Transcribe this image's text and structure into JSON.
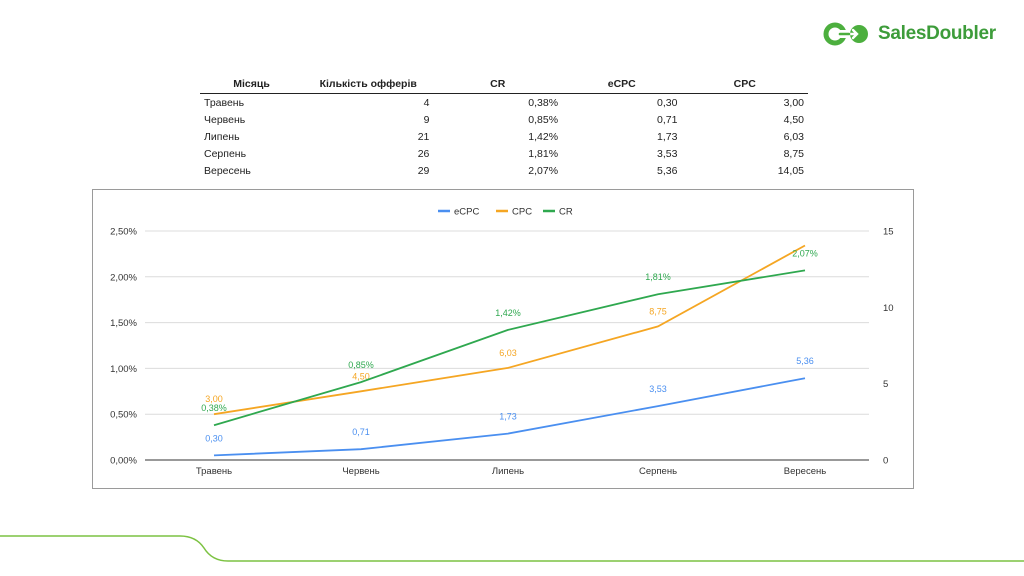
{
  "brand": {
    "name": "SalesDoubler",
    "color": "#3d9c3a"
  },
  "table": {
    "headers": [
      "Місяць",
      "Кількість офферів",
      "CR",
      "eCPC",
      "CPC"
    ],
    "rows": [
      [
        "Травень",
        "4",
        "0,38%",
        "0,30",
        "3,00"
      ],
      [
        "Червень",
        "9",
        "0,85%",
        "0,71",
        "4,50"
      ],
      [
        "Липень",
        "21",
        "1,42%",
        "1,73",
        "6,03"
      ],
      [
        "Серпень",
        "26",
        "1,81%",
        "3,53",
        "8,75"
      ],
      [
        "Вересень",
        "29",
        "2,07%",
        "5,36",
        "14,05"
      ]
    ]
  },
  "chart_data": {
    "type": "line",
    "categories": [
      "Травень",
      "Червень",
      "Липень",
      "Серпень",
      "Вересень"
    ],
    "legend_position": "top-center",
    "left_axis": {
      "ylim": [
        0,
        2.5
      ],
      "ticks": [
        "0,00%",
        "0,50%",
        "1,00%",
        "1,50%",
        "2,00%",
        "2,50%"
      ]
    },
    "right_axis": {
      "ylim": [
        0,
        15
      ],
      "ticks": [
        "0",
        "5",
        "10",
        "15"
      ]
    },
    "series": [
      {
        "name": "eCPC",
        "axis": "right",
        "color": "#4a8ff0",
        "values": [
          0.3,
          0.71,
          1.73,
          3.53,
          5.36
        ],
        "labels": [
          "0,30",
          "0,71",
          "1,73",
          "3,53",
          "5,36"
        ]
      },
      {
        "name": "CPC",
        "axis": "right",
        "color": "#f5a623",
        "values": [
          3.0,
          4.5,
          6.03,
          8.75,
          14.05
        ],
        "labels": [
          "3,00",
          "4,50",
          "6,03",
          "8,75",
          ""
        ]
      },
      {
        "name": "CR",
        "axis": "left",
        "color": "#2fa84f",
        "values": [
          0.38,
          0.85,
          1.42,
          1.81,
          2.07
        ],
        "labels": [
          "0,38%",
          "0,85%",
          "1,42%",
          "1,81%",
          "2,07%"
        ]
      }
    ]
  }
}
